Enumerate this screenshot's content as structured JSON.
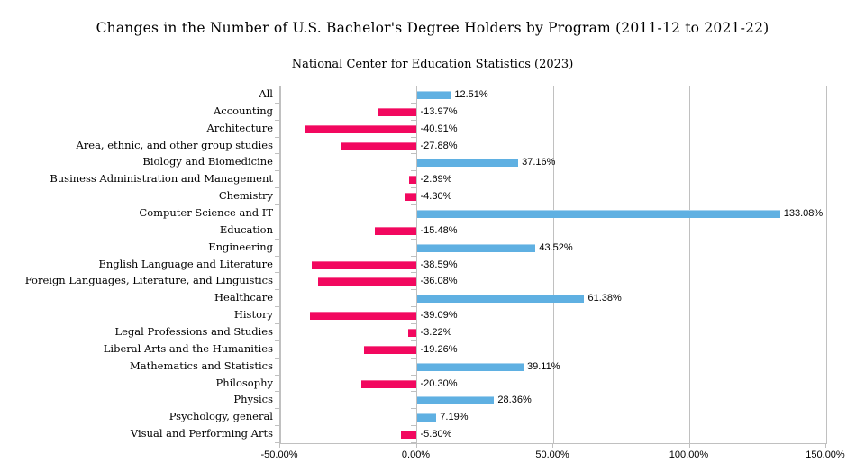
{
  "chart_data": {
    "type": "bar",
    "orientation": "horizontal",
    "title": "Changes in the Number of U.S. Bachelor's Degree Holders by Program (2011-12 to 2021-22)",
    "subtitle": "National Center for Education Statistics (2023)",
    "categories": [
      "All",
      "Accounting",
      "Architecture",
      "Area, ethnic, and other group studies",
      "Biology and Biomedicine",
      "Business Administration and Management",
      "Chemistry",
      "Computer Science and IT",
      "Education",
      "Engineering",
      "English Language and Literature",
      "Foreign Languages, Literature, and Linguistics",
      "Healthcare",
      "History",
      "Legal Professions and Studies",
      "Liberal Arts and the Humanities",
      "Mathematics and Statistics",
      "Philosophy",
      "Physics",
      "Psychology, general",
      "Visual and Performing Arts"
    ],
    "values": [
      12.51,
      -13.97,
      -40.91,
      -27.88,
      37.16,
      -2.69,
      -4.3,
      133.08,
      -15.48,
      43.52,
      -38.59,
      -36.08,
      61.38,
      -39.09,
      -3.22,
      -19.26,
      39.11,
      -20.3,
      28.36,
      7.19,
      -5.8
    ],
    "value_labels": [
      "12.51%",
      "-13.97%",
      "-40.91%",
      "-27.88%",
      "37.16%",
      "-2.69%",
      "-4.30%",
      "133.08%",
      "-15.48%",
      "43.52%",
      "-38.59%",
      "-36.08%",
      "61.38%",
      "-39.09%",
      "-3.22%",
      "-19.26%",
      "39.11%",
      "-20.30%",
      "28.36%",
      "7.19%",
      "-5.80%"
    ],
    "xlim": [
      -50,
      150
    ],
    "x_tick_values": [
      -50,
      0,
      50,
      100,
      150
    ],
    "x_tick_labels": [
      "-50.00%",
      "0.00%",
      "50.00%",
      "100.00%",
      "150.00%"
    ],
    "grid": "vertical-major",
    "legend": "none",
    "colors": {
      "positive_bar": "#5fb0e2",
      "negative_bar": "#f2085f",
      "gridline": "#c0c0c0",
      "text": "#000000",
      "background": "#ffffff"
    }
  }
}
